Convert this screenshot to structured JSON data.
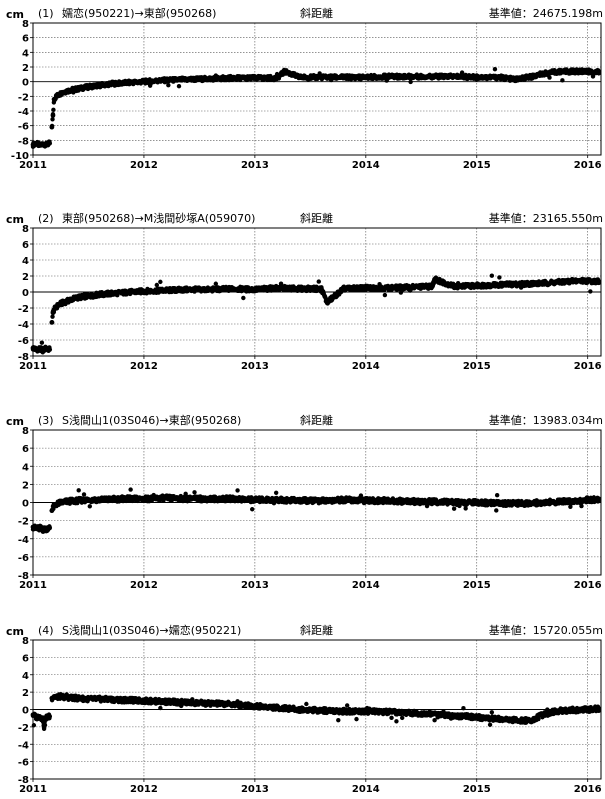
{
  "chart_data": [
    {
      "type": "scatter",
      "unit_label": "cm",
      "title_num": "(1)",
      "title_path": "嬬恋(950221)→東部(950268)",
      "title_kind": "斜距離",
      "ref_label": "基準値：24675.198m",
      "ylim": [
        -10,
        8
      ],
      "yticks": [
        -10,
        -8,
        -6,
        -4,
        -2,
        0,
        2,
        4,
        6,
        8
      ],
      "xlim": [
        2011,
        2016.12
      ],
      "xticks": [
        2011,
        2012,
        2013,
        2014,
        2015,
        2016
      ],
      "grid": true,
      "series": [
        {
          "x": [
            2011.0,
            2011.03,
            2011.06,
            2011.09,
            2011.12,
            2011.15,
            2011.17,
            2011.18,
            2011.19,
            2011.21,
            2011.23,
            2011.26,
            2011.3,
            2011.35,
            2011.4,
            2011.5,
            2011.6,
            2011.7,
            2011.8,
            2011.9,
            2012.0,
            2012.2,
            2012.4,
            2012.6,
            2012.8,
            2013.0,
            2013.2,
            2013.27,
            2013.4,
            2013.6,
            2013.8,
            2014.0,
            2014.2,
            2014.4,
            2014.6,
            2014.8,
            2015.0,
            2015.2,
            2015.35,
            2015.5,
            2015.6,
            2015.7,
            2015.8,
            2015.9,
            2016.0,
            2016.05,
            2016.1
          ],
          "y": [
            -8.6,
            -8.4,
            -8.7,
            -8.5,
            -8.6,
            -8.4,
            -6.2,
            -4.6,
            -2.4,
            -2.0,
            -1.8,
            -1.5,
            -1.3,
            -1.1,
            -1.0,
            -0.7,
            -0.5,
            -0.3,
            -0.2,
            -0.1,
            0.0,
            0.2,
            0.3,
            0.4,
            0.5,
            0.5,
            0.5,
            1.4,
            0.6,
            0.6,
            0.6,
            0.6,
            0.7,
            0.7,
            0.7,
            0.7,
            0.6,
            0.6,
            0.3,
            0.7,
            1.1,
            1.3,
            1.4,
            1.4,
            1.4,
            1.3,
            1.3
          ]
        }
      ]
    },
    {
      "type": "scatter",
      "unit_label": "cm",
      "title_num": "(2)",
      "title_path": "東部(950268)→M浅間砂塚A(059070)",
      "title_kind": "斜距離",
      "ref_label": "基準値：23165.550m",
      "ylim": [
        -8,
        8
      ],
      "yticks": [
        -8,
        -6,
        -4,
        -2,
        0,
        2,
        4,
        6,
        8
      ],
      "xlim": [
        2011,
        2016.12
      ],
      "xticks": [
        2011,
        2012,
        2013,
        2014,
        2015,
        2016
      ],
      "grid": true,
      "series": [
        {
          "x": [
            2011.0,
            2011.03,
            2011.06,
            2011.09,
            2011.12,
            2011.15,
            2011.17,
            2011.18,
            2011.19,
            2011.21,
            2011.23,
            2011.26,
            2011.3,
            2011.35,
            2011.4,
            2011.5,
            2011.6,
            2011.7,
            2011.8,
            2011.9,
            2012.0,
            2012.2,
            2012.4,
            2012.6,
            2012.8,
            2013.0,
            2013.2,
            2013.4,
            2013.6,
            2013.65,
            2013.8,
            2014.0,
            2014.2,
            2014.4,
            2014.6,
            2014.62,
            2014.8,
            2015.0,
            2015.2,
            2015.4,
            2015.6,
            2015.8,
            2015.9,
            2016.0,
            2016.1
          ],
          "y": [
            -7.0,
            -7.2,
            -7.1,
            -7.3,
            -7.0,
            -7.2,
            -3.8,
            -2.6,
            -2.2,
            -1.9,
            -1.6,
            -1.4,
            -1.2,
            -0.9,
            -0.7,
            -0.5,
            -0.3,
            -0.2,
            -0.1,
            0.0,
            0.1,
            0.2,
            0.3,
            0.3,
            0.4,
            0.3,
            0.5,
            0.4,
            0.4,
            -1.3,
            0.4,
            0.5,
            0.5,
            0.6,
            0.7,
            1.6,
            0.7,
            0.8,
            0.9,
            1.0,
            1.1,
            1.3,
            1.4,
            1.4,
            1.3
          ]
        }
      ]
    },
    {
      "type": "scatter",
      "unit_label": "cm",
      "title_num": "(3)",
      "title_path": "S浅間山1(03S046)→東部(950268)",
      "title_kind": "斜距離",
      "ref_label": "基準値：13983.034m",
      "ylim": [
        -8,
        8
      ],
      "yticks": [
        -8,
        -6,
        -4,
        -2,
        0,
        2,
        4,
        6,
        8
      ],
      "xlim": [
        2011,
        2016.12
      ],
      "xticks": [
        2011,
        2012,
        2013,
        2014,
        2015,
        2016
      ],
      "grid": true,
      "series": [
        {
          "x": [
            2011.0,
            2011.03,
            2011.06,
            2011.09,
            2011.12,
            2011.15,
            2011.17,
            2011.19,
            2011.21,
            2011.25,
            2011.3,
            2011.4,
            2011.5,
            2011.6,
            2011.8,
            2012.0,
            2012.2,
            2012.4,
            2012.6,
            2012.8,
            2013.0,
            2013.2,
            2013.4,
            2013.6,
            2013.8,
            2014.0,
            2014.2,
            2014.4,
            2014.6,
            2014.8,
            2015.0,
            2015.2,
            2015.4,
            2015.6,
            2015.8,
            2016.0,
            2016.1
          ],
          "y": [
            -2.7,
            -2.9,
            -2.8,
            -3.0,
            -2.9,
            -2.8,
            -0.9,
            -0.4,
            -0.2,
            0.0,
            0.1,
            0.2,
            0.3,
            0.3,
            0.4,
            0.4,
            0.5,
            0.4,
            0.4,
            0.4,
            0.3,
            0.3,
            0.2,
            0.2,
            0.3,
            0.2,
            0.2,
            0.1,
            0.1,
            0.0,
            0.0,
            -0.1,
            -0.1,
            0.0,
            0.1,
            0.3,
            0.3
          ]
        }
      ]
    },
    {
      "type": "scatter",
      "unit_label": "cm",
      "title_num": "(4)",
      "title_path": "S浅間山1(03S046)→嬬恋(950221)",
      "title_kind": "斜距離",
      "ref_label": "基準値：15720.055m",
      "ylim": [
        -8,
        8
      ],
      "yticks": [
        -8,
        -6,
        -4,
        -2,
        0,
        2,
        4,
        6,
        8
      ],
      "xlim": [
        2011,
        2016.12
      ],
      "xticks": [
        2011,
        2012,
        2013,
        2014,
        2015,
        2016
      ],
      "grid": true,
      "series": [
        {
          "x": [
            2011.0,
            2011.03,
            2011.06,
            2011.09,
            2011.1,
            2011.12,
            2011.15,
            2011.17,
            2011.19,
            2011.21,
            2011.25,
            2011.3,
            2011.4,
            2011.5,
            2011.6,
            2011.8,
            2012.0,
            2012.2,
            2012.4,
            2012.6,
            2012.8,
            2013.0,
            2013.2,
            2013.4,
            2013.6,
            2013.8,
            2014.0,
            2014.2,
            2014.4,
            2014.6,
            2014.8,
            2015.0,
            2015.2,
            2015.4,
            2015.5,
            2015.6,
            2015.7,
            2015.8,
            2016.0,
            2016.1
          ],
          "y": [
            -0.6,
            -0.9,
            -0.8,
            -1.1,
            -2.0,
            -0.9,
            -0.8,
            1.3,
            1.5,
            1.4,
            1.5,
            1.4,
            1.3,
            1.2,
            1.2,
            1.1,
            1.0,
            0.9,
            0.8,
            0.7,
            0.6,
            0.4,
            0.2,
            0.0,
            -0.1,
            -0.2,
            -0.2,
            -0.3,
            -0.4,
            -0.5,
            -0.7,
            -0.9,
            -1.1,
            -1.3,
            -1.2,
            -0.6,
            -0.2,
            -0.1,
            0.0,
            0.1
          ]
        }
      ]
    }
  ]
}
